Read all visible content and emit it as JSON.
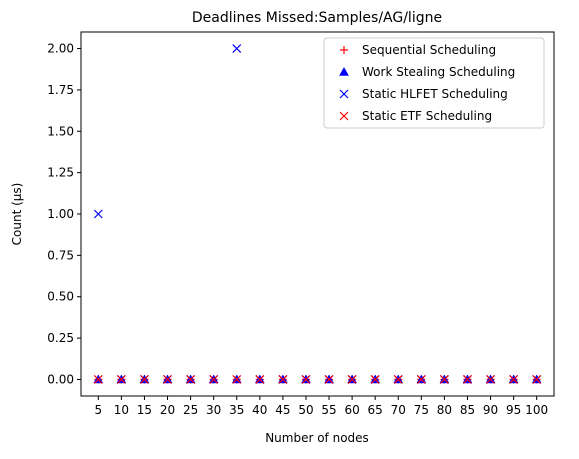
{
  "chart_data": {
    "type": "scatter",
    "title": "Deadlines Missed:Samples/AG/ligne",
    "xlabel": "Number of nodes",
    "ylabel": "Count (µs)",
    "x": [
      5,
      10,
      15,
      20,
      25,
      30,
      35,
      40,
      45,
      50,
      55,
      60,
      65,
      70,
      75,
      80,
      85,
      90,
      95,
      100
    ],
    "xlim": [
      1.25,
      103.75
    ],
    "ylim": [
      -0.1,
      2.1
    ],
    "yticks": [
      0.0,
      0.25,
      0.5,
      0.75,
      1.0,
      1.25,
      1.5,
      1.75,
      2.0
    ],
    "ytick_labels": [
      "0.00",
      "0.25",
      "0.50",
      "0.75",
      "1.00",
      "1.25",
      "1.50",
      "1.75",
      "2.00"
    ],
    "xtick_labels": [
      "5",
      "10",
      "15",
      "20",
      "25",
      "30",
      "35",
      "40",
      "45",
      "50",
      "55",
      "60",
      "65",
      "70",
      "75",
      "80",
      "85",
      "90",
      "95",
      "100"
    ],
    "grid": false,
    "legend_position": "top-right",
    "series": [
      {
        "name": "Sequential Scheduling",
        "marker": "plus",
        "color": "#ff0000",
        "values": [
          0,
          0,
          0,
          0,
          0,
          0,
          0,
          0,
          0,
          0,
          0,
          0,
          0,
          0,
          0,
          0,
          0,
          0,
          0,
          0
        ]
      },
      {
        "name": "Work Stealing Scheduling",
        "marker": "triangle",
        "color": "#0000ff",
        "values": [
          0,
          0,
          0,
          0,
          0,
          0,
          0,
          0,
          0,
          0,
          0,
          0,
          0,
          0,
          0,
          0,
          0,
          0,
          0,
          0
        ]
      },
      {
        "name": "Static HLFET Scheduling",
        "marker": "x",
        "color": "#0000ff",
        "values": [
          1,
          0,
          0,
          0,
          0,
          0,
          2,
          0,
          0,
          0,
          0,
          0,
          0,
          0,
          0,
          0,
          0,
          0,
          0,
          0
        ]
      },
      {
        "name": "Static ETF Scheduling",
        "marker": "x",
        "color": "#ff0000",
        "values": [
          0,
          0,
          0,
          0,
          0,
          0,
          0,
          0,
          0,
          0,
          0,
          0,
          0,
          0,
          0,
          0,
          0,
          0,
          0,
          0
        ]
      }
    ]
  }
}
